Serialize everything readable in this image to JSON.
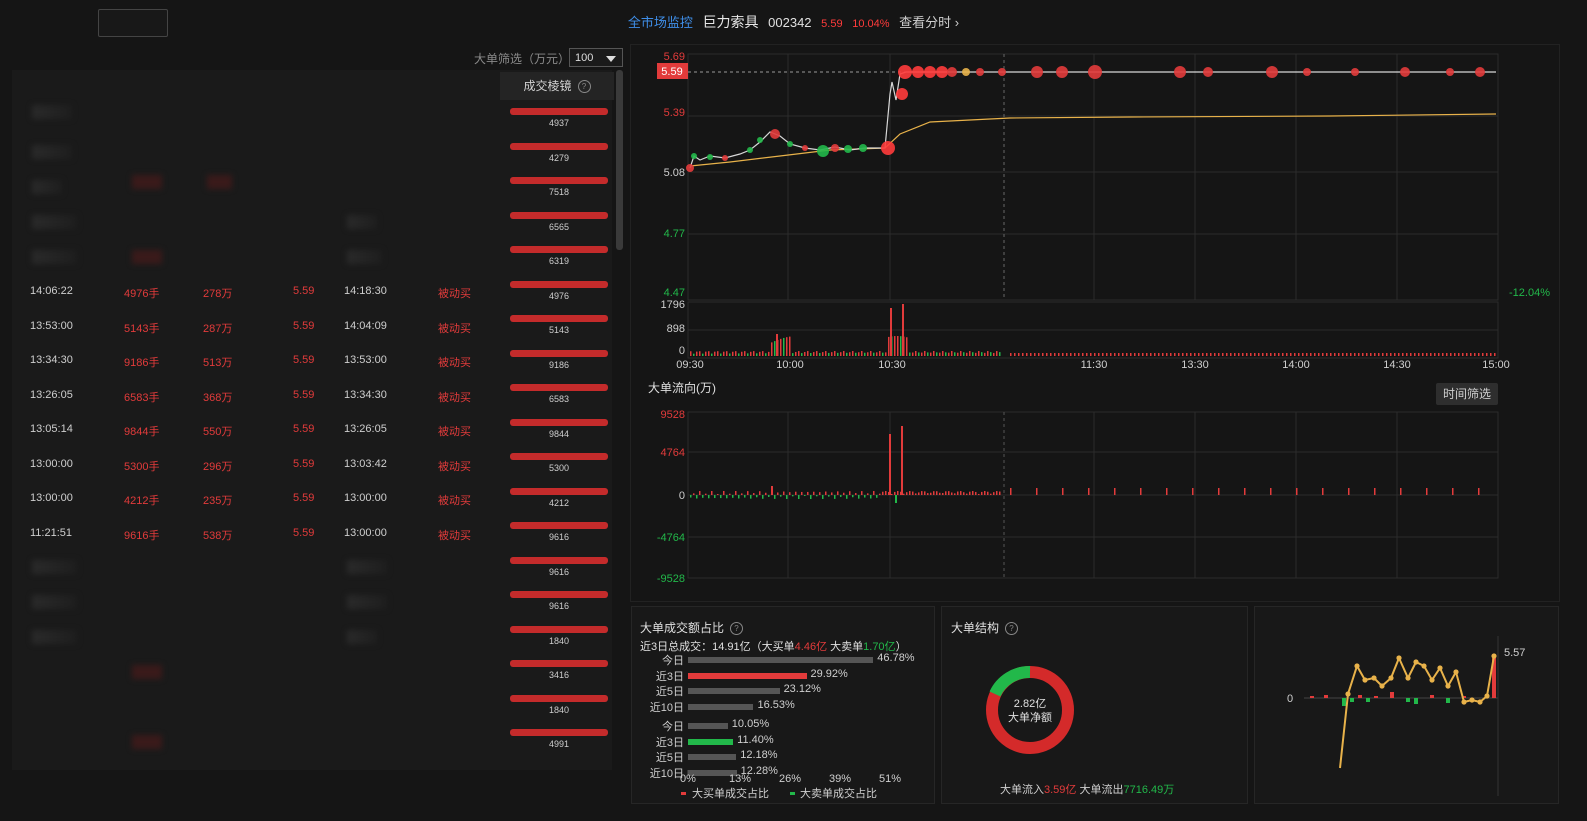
{
  "header": {
    "monitor_link": "全市场监控",
    "stock_name": "巨力索具",
    "stock_code": "002342",
    "price": "5.59",
    "change_pct": "10.04%",
    "view_minute": "查看分时 ›"
  },
  "filter": {
    "label": "大单筛选（万元）",
    "selected": "100"
  },
  "prism": {
    "title": "成交棱镜",
    "values": [
      "4937",
      "4279",
      "7518",
      "6565",
      "6319",
      "4976",
      "5143",
      "9186",
      "6583",
      "9844",
      "5300",
      "4212",
      "9616",
      "9616",
      "9616",
      "1840",
      "3416",
      "1840",
      "4991"
    ]
  },
  "trades": [
    {
      "time": "14:06:22",
      "vol": "4976手",
      "amt": "278万",
      "price": "5.59",
      "time2": "14:18:30",
      "type": "被动买"
    },
    {
      "time": "13:53:00",
      "vol": "5143手",
      "amt": "287万",
      "price": "5.59",
      "time2": "14:04:09",
      "type": "被动买"
    },
    {
      "time": "13:34:30",
      "vol": "9186手",
      "amt": "513万",
      "price": "5.59",
      "time2": "13:53:00",
      "type": "被动买"
    },
    {
      "time": "13:26:05",
      "vol": "6583手",
      "amt": "368万",
      "price": "5.59",
      "time2": "13:34:30",
      "type": "被动买"
    },
    {
      "time": "13:05:14",
      "vol": "9844手",
      "amt": "550万",
      "price": "5.59",
      "time2": "13:26:05",
      "type": "被动买"
    },
    {
      "time": "13:00:00",
      "vol": "5300手",
      "amt": "296万",
      "price": "5.59",
      "time2": "13:03:42",
      "type": "被动买"
    },
    {
      "time": "13:00:00",
      "vol": "4212手",
      "amt": "235万",
      "price": "5.59",
      "time2": "13:00:00",
      "type": "被动买"
    },
    {
      "time": "11:21:51",
      "vol": "9616手",
      "amt": "538万",
      "price": "5.59",
      "time2": "13:00:00",
      "type": "被动买"
    }
  ],
  "price_chart": {
    "y_ticks": [
      "5.69",
      "5.39",
      "5.08",
      "4.77",
      "4.47"
    ],
    "current_price": "5.59",
    "right_pct": "-12.04%"
  },
  "volume_chart": {
    "y_ticks": [
      "1796",
      "898",
      "0"
    ],
    "x_ticks": [
      "09:30",
      "10:00",
      "10:30",
      "11:30",
      "13:30",
      "14:00",
      "14:30",
      "15:00"
    ]
  },
  "flow": {
    "title": "大单流向(万)",
    "time_filter": "时间筛选",
    "y_ticks": [
      "9528",
      "4764",
      "0",
      "-4764",
      "-9528"
    ]
  },
  "ratio": {
    "title": "大单成交额占比",
    "summary_prefix": "近3日总成交：14.91亿（大买单",
    "buy_amount": "4.46亿",
    "summary_mid": " 大卖单",
    "sell_amount": "1.70亿",
    "summary_suffix": "）",
    "buy_rows": [
      {
        "label": "今日",
        "value": "46.78%"
      },
      {
        "label": "近3日",
        "value": "29.92%"
      },
      {
        "label": "近5日",
        "value": "23.12%"
      },
      {
        "label": "近10日",
        "value": "16.53%"
      }
    ],
    "sell_rows": [
      {
        "label": "今日",
        "value": "10.05%"
      },
      {
        "label": "近3日",
        "value": "11.40%"
      },
      {
        "label": "近5日",
        "value": "12.18%"
      },
      {
        "label": "近10日",
        "value": "12.28%"
      }
    ],
    "x_ticks": [
      "0%",
      "13%",
      "26%",
      "39%",
      "51%"
    ],
    "legend_buy": "大买单成交占比",
    "legend_sell": "大卖单成交占比"
  },
  "structure": {
    "title": "大单结构",
    "center_value": "2.82亿",
    "center_label": "大单净额",
    "inflow_label": "大单流入",
    "inflow_value": "3.59亿",
    "outflow_label": "大单流出",
    "outflow_value": "7716.49万"
  },
  "mini_chart": {
    "top_label": "5.57",
    "zero_label": "0"
  },
  "colors": {
    "red": "#e23b3b",
    "green": "#22b84a",
    "orange": "#e8b24a",
    "blue": "#3f8ee8"
  }
}
